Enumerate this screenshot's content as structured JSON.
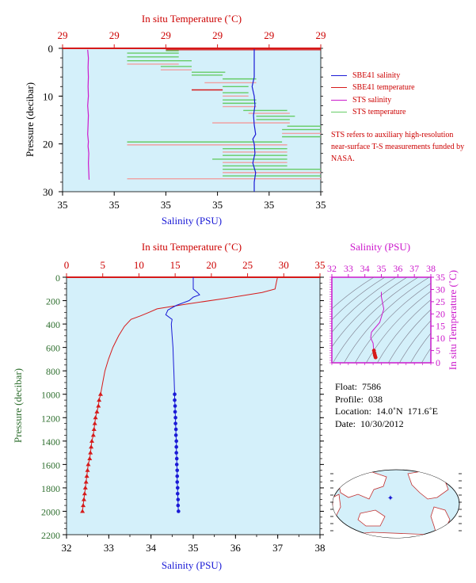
{
  "top_chart": {
    "top_axis_label": "In situ Temperature (˚C)",
    "bottom_axis_label": "Salinity (PSU)",
    "y_axis_label": "Pressure (decibar)",
    "top_ticks": [
      "29",
      "29",
      "29",
      "29",
      "29",
      "29"
    ],
    "bottom_ticks": [
      "35",
      "35",
      "35",
      "35",
      "35",
      "35"
    ],
    "y_ticks": [
      "0",
      "10",
      "20",
      "30"
    ],
    "legend": [
      {
        "label": "SBE41 salinity",
        "color": "#1a1ad6"
      },
      {
        "label": "SBE41 temperature",
        "color": "#d61a1a"
      },
      {
        "label": "STS salinity",
        "color": "#cc19cc"
      },
      {
        "label": "STS temperature",
        "color": "#66cc66"
      }
    ],
    "note": "STS refers to auxiliary high-resolution near-surface T-S measurements funded by NASA."
  },
  "main_chart": {
    "top_axis_label": "In situ Temperature (˚C)",
    "bottom_axis_label": "Salinity (PSU)",
    "y_axis_label": "Pressure (decibar)",
    "top_ticks": [
      "0",
      "5",
      "10",
      "15",
      "20",
      "25",
      "30",
      "35"
    ],
    "bottom_ticks": [
      "32",
      "33",
      "34",
      "35",
      "36",
      "37",
      "38"
    ],
    "y_ticks": [
      "0",
      "200",
      "400",
      "600",
      "800",
      "1000",
      "1200",
      "1400",
      "1600",
      "1800",
      "2000",
      "2200"
    ]
  },
  "ts_chart": {
    "top_axis_label": "Salinity (PSU)",
    "right_axis_label": "In situ Temperature (˚C)",
    "top_ticks": [
      "32",
      "33",
      "34",
      "35",
      "36",
      "37",
      "38"
    ],
    "right_ticks": [
      "0",
      "5",
      "10",
      "15",
      "20",
      "25",
      "30",
      "35"
    ]
  },
  "info": {
    "float_line": "Float:  7586",
    "profile_line": "Profile:  038",
    "location_line": "Location:  14.0˚N  171.6˚E",
    "date_line": "Date:  10/30/2012"
  },
  "colors": {
    "plot_bg": "#d4f0fa",
    "temperature": "#d61a1a",
    "salinity": "#1a1ad6",
    "sts_salinity": "#cc19cc",
    "sts_temperature": "#66cc66",
    "temp_axis": "#cc0000",
    "pressure_axis": "#2f6f2f",
    "ts_axis": "#cc19cc"
  },
  "chart_data": [
    {
      "type": "line",
      "title": "",
      "xlabel": "Salinity (PSU)",
      "x2label": "In situ Temperature (˚C)",
      "ylabel": "Pressure (decibar)",
      "ylim": [
        0,
        30
      ],
      "y_inverted": true,
      "series": [
        {
          "name": "SBE41 salinity",
          "points": [
            [
              0,
              35.0
            ],
            [
              4,
              35.0
            ],
            [
              6,
              35.0
            ],
            [
              8,
              34.97
            ],
            [
              10,
              35.0
            ],
            [
              12,
              35.01
            ],
            [
              14,
              34.99
            ],
            [
              16,
              35.0
            ],
            [
              18,
              35.02
            ],
            [
              19,
              34.98
            ],
            [
              20,
              35.0
            ],
            [
              22,
              35.01
            ],
            [
              24,
              34.98
            ],
            [
              26,
              35.02
            ],
            [
              28,
              35.0
            ],
            [
              30,
              35.0
            ]
          ]
        },
        {
          "name": "STS salinity",
          "points": [
            [
              0.3,
              34.93
            ],
            [
              2,
              34.94
            ],
            [
              4,
              34.935
            ],
            [
              6,
              34.94
            ],
            [
              8,
              34.935
            ],
            [
              10,
              34.94
            ],
            [
              12,
              34.93
            ],
            [
              14,
              34.94
            ],
            [
              16,
              34.935
            ],
            [
              18,
              34.93
            ],
            [
              19.5,
              34.94
            ],
            [
              20.5,
              34.935
            ],
            [
              22,
              34.945
            ],
            [
              24,
              34.94
            ],
            [
              26,
              34.945
            ],
            [
              27.5,
              34.95
            ]
          ]
        }
      ]
    },
    {
      "type": "line",
      "title": "",
      "xlabel": "Salinity (PSU)",
      "x2label": "In situ Temperature (˚C)",
      "ylabel": "Pressure (decibar)",
      "xlim": [
        32,
        38
      ],
      "x2lim": [
        0,
        35
      ],
      "ylim": [
        0,
        2200
      ],
      "y_inverted": true,
      "series": [
        {
          "name": "Temperature",
          "points": [
            [
              0,
              29.1
            ],
            [
              10,
              29.1
            ],
            [
              40,
              29.0
            ],
            [
              100,
              28.8
            ],
            [
              130,
              27.0
            ],
            [
              180,
              22.0
            ],
            [
              230,
              16.5
            ],
            [
              270,
              12.5
            ],
            [
              300,
              11.4
            ],
            [
              330,
              10.2
            ],
            [
              360,
              8.9
            ],
            [
              420,
              8.0
            ],
            [
              500,
              7.2
            ],
            [
              600,
              6.4
            ],
            [
              700,
              5.8
            ],
            [
              800,
              5.3
            ],
            [
              900,
              5.0
            ],
            [
              1000,
              4.7
            ],
            [
              1050,
              4.5
            ],
            [
              1100,
              4.4
            ],
            [
              1150,
              4.2
            ],
            [
              1200,
              4.0
            ],
            [
              1250,
              3.9
            ],
            [
              1300,
              3.8
            ],
            [
              1350,
              3.7
            ],
            [
              1400,
              3.5
            ],
            [
              1450,
              3.4
            ],
            [
              1500,
              3.3
            ],
            [
              1550,
              3.2
            ],
            [
              1600,
              3.0
            ],
            [
              1650,
              2.9
            ],
            [
              1700,
              2.8
            ],
            [
              1750,
              2.7
            ],
            [
              1800,
              2.6
            ],
            [
              1850,
              2.5
            ],
            [
              1900,
              2.4
            ],
            [
              1950,
              2.3
            ],
            [
              2000,
              2.2
            ]
          ]
        },
        {
          "name": "Salinity",
          "points": [
            [
              0,
              35.0
            ],
            [
              60,
              35.0
            ],
            [
              100,
              35.0
            ],
            [
              130,
              35.1
            ],
            [
              150,
              35.15
            ],
            [
              170,
              35.0
            ],
            [
              200,
              34.9
            ],
            [
              240,
              34.6
            ],
            [
              280,
              34.4
            ],
            [
              320,
              34.35
            ],
            [
              360,
              34.5
            ],
            [
              400,
              34.48
            ],
            [
              500,
              34.5
            ],
            [
              600,
              34.52
            ],
            [
              700,
              34.53
            ],
            [
              800,
              34.54
            ],
            [
              900,
              34.55
            ],
            [
              1000,
              34.56
            ],
            [
              1050,
              34.56
            ],
            [
              1100,
              34.57
            ],
            [
              1150,
              34.57
            ],
            [
              1200,
              34.58
            ],
            [
              1250,
              34.58
            ],
            [
              1300,
              34.59
            ],
            [
              1350,
              34.59
            ],
            [
              1400,
              34.6
            ],
            [
              1450,
              34.6
            ],
            [
              1500,
              34.6
            ],
            [
              1550,
              34.61
            ],
            [
              1600,
              34.61
            ],
            [
              1650,
              34.62
            ],
            [
              1700,
              34.62
            ],
            [
              1750,
              34.62
            ],
            [
              1800,
              34.63
            ],
            [
              1850,
              34.63
            ],
            [
              1900,
              34.64
            ],
            [
              1950,
              34.64
            ],
            [
              2000,
              34.65
            ]
          ]
        }
      ]
    },
    {
      "type": "scatter",
      "title": "",
      "xlabel": "Salinity (PSU)",
      "ylabel": "In situ Temperature (˚C)",
      "xlim": [
        32,
        38
      ],
      "ylim": [
        0,
        35
      ],
      "series": [
        {
          "name": "T-S profile",
          "points": [
            [
              35.0,
              29.0
            ],
            [
              35.0,
              27.0
            ],
            [
              35.15,
              22.0
            ],
            [
              34.9,
              16.5
            ],
            [
              34.4,
              12.5
            ],
            [
              34.35,
              10.2
            ],
            [
              34.5,
              8.0
            ],
            [
              34.52,
              6.4
            ],
            [
              34.55,
              5.0
            ],
            [
              34.58,
              4.0
            ],
            [
              34.6,
              3.3
            ],
            [
              34.62,
              2.8
            ],
            [
              34.65,
              2.2
            ]
          ]
        }
      ]
    }
  ]
}
